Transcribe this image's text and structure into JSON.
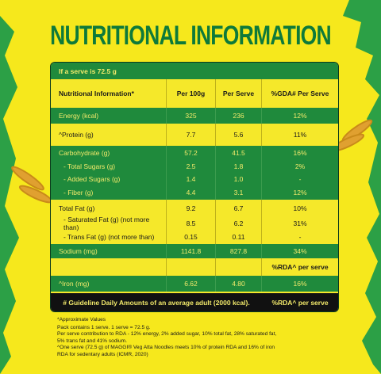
{
  "title": "NUTRITIONAL INFORMATION",
  "table": {
    "serve": "If a serve is 72.5 g",
    "header": [
      "Nutritional Information*",
      "Per 100g",
      "Per Serve",
      "%GDA# Per Serve"
    ],
    "rows": [
      [
        "Energy (kcal)",
        "325",
        "236",
        "12%"
      ],
      [
        "^Protein (g)",
        "7.7",
        "5.6",
        "11%"
      ],
      [
        "Carbohydrate (g)",
        "57.2",
        "41.5",
        "16%"
      ],
      [
        "- Total Sugars (g)",
        "2.5",
        "1.8",
        "2%"
      ],
      [
        "- Added Sugars (g)",
        "1.4",
        "1.0",
        "-"
      ],
      [
        "- Fiber (g)",
        "4.4",
        "3.1",
        "12%"
      ],
      [
        "Total Fat (g)",
        "9.2",
        "6.7",
        "10%"
      ],
      [
        "- Saturated Fat (g) (not more than)",
        "8.5",
        "6.2",
        "31%"
      ],
      [
        "- Trans Fat (g) (not more than)",
        "0.15",
        "0.11",
        "-"
      ],
      [
        "Sodium (mg)",
        "1141.8",
        "827.8",
        "34%"
      ],
      [
        "^Iron (mg)",
        "6.62",
        "4.80",
        "16%"
      ]
    ],
    "rda_header": "%RDA^ per serve",
    "footer": [
      "# Guideline Daily Amounts of an average adult (2000 kcal).",
      "%RDA^ per serve"
    ]
  },
  "notes": [
    "*Approximate Values",
    "Pack contains 1 serve. 1 serve = 72.5 g.",
    "Per serve contribution to RDA - 12% energy, 2% added sugar, 10% total fat, 28% saturated fat,",
    "5% trans fat and 41% sodium.",
    "^One serve (72.5 g) of MAGGI® Veg Atta Noodles meets 10% of protein RDA and 16% of iron",
    "RDA for sedentary adults (ICMR, 2020)"
  ]
}
